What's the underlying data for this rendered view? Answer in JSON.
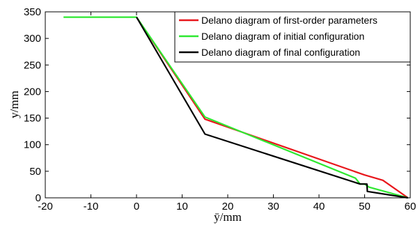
{
  "chart_data": {
    "type": "line",
    "title": "",
    "xlabel": "ȳ/mm",
    "ylabel": "y/mm",
    "xlim": [
      -20,
      60
    ],
    "ylim": [
      0,
      350
    ],
    "xticks": [
      -20,
      -10,
      0,
      10,
      20,
      30,
      40,
      50,
      60
    ],
    "yticks": [
      0,
      50,
      100,
      150,
      200,
      250,
      300,
      350
    ],
    "grid": false,
    "legend_position": "top-right",
    "series": [
      {
        "name": "Delano diagram of first-order parameters",
        "color": "#e8161b",
        "points": [
          [
            0,
            340
          ],
          [
            15,
            148
          ],
          [
            50,
            43
          ],
          [
            54,
            33
          ],
          [
            59.5,
            0
          ]
        ]
      },
      {
        "name": "Delano diagram of initial configuration",
        "color": "#2ee830",
        "points": [
          [
            -16,
            340
          ],
          [
            0,
            340
          ],
          [
            15,
            152
          ],
          [
            48,
            37
          ],
          [
            49,
            26
          ],
          [
            50,
            26
          ],
          [
            51,
            20
          ],
          [
            59.5,
            0
          ]
        ]
      },
      {
        "name": "Delano diagram of final configuration",
        "color": "#000000",
        "points": [
          [
            0,
            340
          ],
          [
            15,
            120
          ],
          [
            49,
            26
          ],
          [
            50.5,
            26
          ],
          [
            50.6,
            12
          ],
          [
            59.5,
            0
          ]
        ]
      }
    ]
  }
}
